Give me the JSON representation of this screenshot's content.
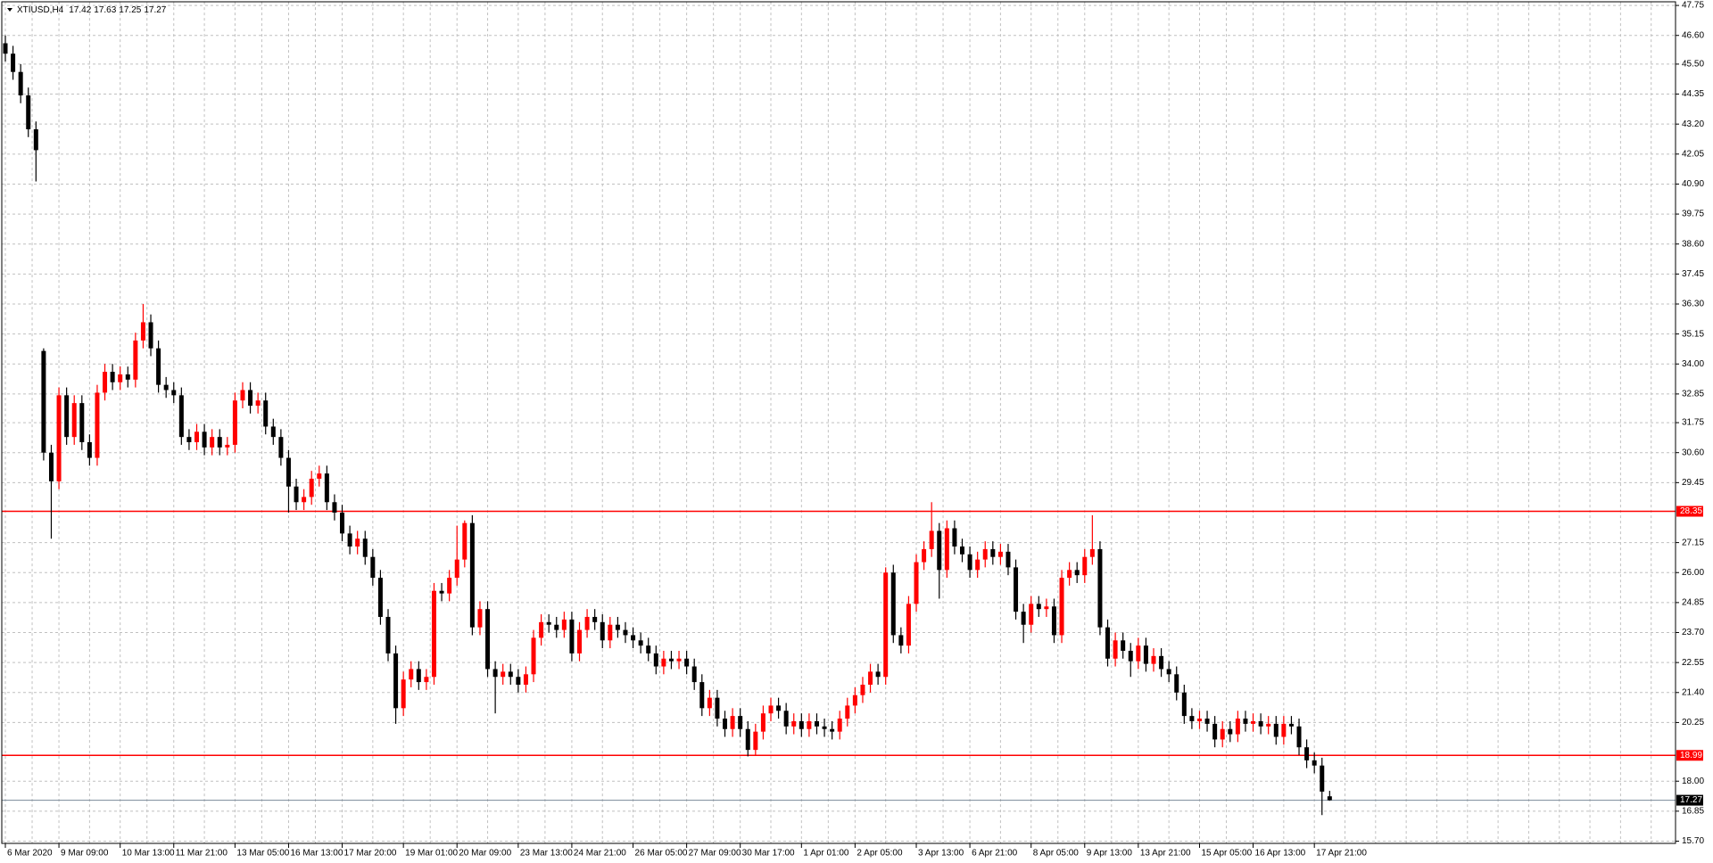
{
  "chart_data": {
    "type": "candlestick",
    "symbol": "XTIUSD,H4",
    "up_color": "#ff0000",
    "down_color": "#000000",
    "grid": true,
    "grid_color": "#c0c0c0",
    "ylim": [
      15.7,
      47.75
    ],
    "yticks": [
      47.75,
      {
        "value": 46.6,
        "label": "46.60"
      },
      {
        "value": 45.5,
        "label": "45.50"
      },
      44.35,
      {
        "value": 43.2,
        "label": "43.20"
      },
      42.05,
      {
        "value": 40.9,
        "label": "40.90"
      },
      39.75,
      {
        "value": 38.6,
        "label": "38.60"
      },
      37.45,
      {
        "value": 36.3,
        "label": "36.30"
      },
      35.15,
      {
        "value": 34.0,
        "label": "34.00"
      },
      32.85,
      31.75,
      {
        "value": 30.6,
        "label": "30.60"
      },
      29.45,
      27.15,
      {
        "value": 26.0,
        "label": "26.00"
      },
      24.85,
      {
        "value": 23.7,
        "label": "23.70"
      },
      22.55,
      {
        "value": 21.4,
        "label": "21.40"
      },
      20.25,
      {
        "value": 18.0,
        "label": "18.00"
      },
      16.85,
      {
        "value": 15.7,
        "label": "15.70"
      }
    ],
    "hlines": [
      {
        "value": 28.35,
        "color": "#ff0000"
      },
      {
        "value": 18.99,
        "color": "#ff0000"
      }
    ],
    "current_price": {
      "value": 17.27,
      "color": "#7a8a9a"
    },
    "categories": [
      "6 Mar 2020",
      null,
      null,
      null,
      null,
      null,
      null,
      "9 Mar 09:00",
      null,
      null,
      null,
      null,
      null,
      null,
      null,
      "10 Mar 13:00",
      null,
      null,
      null,
      null,
      null,
      null,
      "11 Mar 21:00",
      null,
      null,
      null,
      null,
      null,
      null,
      null,
      "13 Mar 05:00",
      null,
      null,
      null,
      null,
      null,
      null,
      "16 Mar 13:00",
      null,
      null,
      null,
      null,
      null,
      null,
      "17 Mar 20:00",
      null,
      null,
      null,
      null,
      null,
      null,
      null,
      "19 Mar 01:00",
      null,
      null,
      null,
      null,
      null,
      null,
      "20 Mar 09:00",
      null,
      null,
      null,
      null,
      null,
      null,
      null,
      "23 Mar 13:00",
      null,
      null,
      null,
      null,
      null,
      null,
      "24 Mar 21:00",
      null,
      null,
      null,
      null,
      null,
      null,
      null,
      "26 Mar 05:00",
      null,
      null,
      null,
      null,
      null,
      null,
      "27 Mar 09:00",
      null,
      null,
      null,
      null,
      null,
      null,
      "30 Mar 17:00",
      null,
      null,
      null,
      null,
      null,
      null,
      null,
      "1 Apr 01:00",
      null,
      null,
      null,
      null,
      null,
      null,
      "2 Apr 05:00",
      null,
      null,
      null,
      null,
      null,
      null,
      null,
      "3 Apr 13:00",
      null,
      null,
      null,
      null,
      null,
      null,
      "6 Apr 21:00",
      null,
      null,
      null,
      null,
      null,
      null,
      null,
      "8 Apr 05:00",
      null,
      null,
      null,
      null,
      null,
      null,
      "9 Apr 13:00",
      null,
      null,
      null,
      null,
      null,
      null,
      "13 Apr 21:00",
      null,
      null,
      null,
      null,
      null,
      null,
      null,
      "15 Apr 05:00",
      null,
      null,
      null,
      null,
      null,
      null,
      "16 Apr 13:00",
      null,
      null,
      null,
      null,
      null,
      null,
      null,
      "17 Apr 21:00",
      null,
      null
    ],
    "open": [
      46.3,
      45.9,
      45.2,
      44.3,
      43.0,
      34.5,
      30.6,
      29.5,
      32.8,
      31.2,
      32.5,
      31.0,
      30.4,
      32.9,
      33.7,
      33.3,
      33.6,
      33.4,
      34.9,
      35.6,
      34.6,
      33.2,
      33.0,
      32.8,
      31.2,
      31.0,
      31.4,
      30.8,
      31.2,
      30.8,
      30.9,
      32.6,
      33.0,
      32.4,
      32.6,
      31.6,
      31.2,
      30.4,
      29.3,
      28.7,
      28.9,
      29.6,
      29.8,
      28.7,
      28.3,
      27.5,
      27.0,
      27.3,
      26.6,
      25.8,
      24.3,
      22.9,
      20.8,
      21.9,
      22.3,
      21.8,
      22.0,
      25.3,
      25.2,
      25.8,
      26.5,
      27.9,
      23.9,
      24.6,
      22.3,
      22.0,
      22.2,
      22.0,
      21.7,
      22.1,
      23.5,
      24.1,
      24.0,
      23.8,
      24.2,
      22.9,
      23.8,
      24.3,
      24.1,
      23.4,
      24.0,
      23.8,
      23.6,
      23.4,
      23.2,
      22.9,
      22.4,
      22.7,
      22.6,
      22.7,
      22.4,
      21.8,
      20.8,
      21.2,
      20.4,
      20.0,
      20.5,
      20.0,
      19.2,
      19.9,
      20.6,
      20.9,
      20.7,
      20.1,
      20.3,
      20.0,
      20.3,
      20.1,
      20.0,
      19.9,
      20.4,
      20.9,
      21.3,
      21.7,
      22.2,
      22.0,
      26.0,
      23.6,
      23.2,
      24.8,
      26.4,
      26.9,
      27.6,
      26.1,
      27.7,
      27.0,
      26.7,
      26.1,
      26.5,
      26.9,
      26.6,
      26.8,
      26.2,
      24.5,
      24.0,
      24.8,
      24.6,
      24.7,
      23.6,
      25.8,
      26.1,
      25.9,
      26.6,
      26.9,
      23.9,
      22.7,
      23.4,
      23.0,
      22.6,
      23.2,
      22.5,
      22.8,
      22.3,
      22.1,
      21.4,
      20.5,
      20.3,
      20.4,
      20.2,
      19.6,
      20.0,
      19.8,
      20.4,
      20.2,
      20.3,
      20.1,
      20.2,
      19.7,
      20.2,
      20.1,
      19.3,
      18.8,
      18.6,
      17.42
    ],
    "high": [
      46.6,
      46.2,
      45.5,
      44.6,
      43.3,
      34.6,
      30.9,
      33.1,
      33.1,
      32.8,
      32.8,
      31.3,
      33.2,
      34.0,
      34.0,
      33.9,
      33.9,
      35.2,
      36.3,
      35.9,
      34.9,
      33.5,
      33.3,
      33.1,
      31.5,
      31.7,
      31.7,
      31.5,
      31.5,
      31.2,
      32.9,
      33.3,
      33.3,
      32.9,
      32.9,
      31.9,
      31.5,
      30.7,
      29.6,
      29.2,
      29.9,
      30.1,
      30.1,
      29.0,
      28.6,
      27.8,
      27.6,
      27.6,
      26.9,
      26.1,
      24.6,
      23.2,
      22.2,
      22.6,
      22.6,
      22.3,
      25.6,
      25.6,
      26.1,
      27.8,
      28.0,
      28.2,
      24.9,
      24.9,
      22.6,
      22.5,
      22.5,
      22.3,
      22.4,
      23.8,
      24.4,
      24.4,
      24.3,
      24.5,
      24.5,
      24.1,
      24.6,
      24.6,
      24.4,
      24.3,
      24.3,
      24.1,
      23.9,
      23.7,
      23.5,
      23.2,
      23.0,
      23.0,
      23.0,
      23.0,
      22.7,
      22.1,
      21.5,
      21.5,
      20.7,
      20.8,
      20.8,
      20.3,
      20.2,
      20.9,
      21.2,
      21.2,
      21.0,
      20.6,
      20.6,
      20.6,
      20.6,
      20.4,
      20.3,
      20.7,
      21.2,
      21.6,
      22.0,
      22.5,
      22.5,
      26.2,
      26.3,
      23.9,
      25.1,
      26.7,
      27.2,
      28.7,
      27.9,
      28.0,
      28.0,
      27.3,
      27.0,
      26.8,
      27.2,
      27.2,
      27.1,
      27.1,
      26.5,
      24.8,
      25.1,
      25.1,
      25.0,
      25.0,
      26.1,
      26.4,
      26.4,
      26.9,
      28.2,
      27.2,
      24.2,
      23.7,
      23.7,
      23.3,
      23.5,
      23.5,
      23.1,
      23.1,
      22.6,
      22.4,
      21.7,
      20.8,
      20.7,
      20.7,
      20.5,
      20.3,
      20.3,
      20.7,
      20.7,
      20.6,
      20.6,
      20.5,
      20.5,
      20.5,
      20.5,
      20.4,
      19.6,
      19.1,
      18.9,
      17.63
    ],
    "low": [
      45.6,
      44.9,
      44.0,
      42.7,
      41.0,
      30.3,
      27.3,
      29.2,
      30.9,
      30.9,
      30.7,
      30.1,
      30.1,
      32.6,
      33.0,
      33.0,
      33.1,
      33.1,
      34.6,
      34.3,
      32.9,
      32.7,
      32.5,
      30.9,
      30.7,
      30.7,
      30.5,
      30.5,
      30.5,
      30.5,
      30.6,
      32.3,
      32.1,
      32.1,
      31.3,
      30.9,
      30.1,
      28.3,
      28.4,
      28.4,
      28.6,
      29.3,
      28.4,
      28.0,
      27.2,
      26.7,
      26.7,
      26.3,
      25.5,
      24.0,
      22.6,
      20.2,
      20.5,
      21.6,
      21.5,
      21.5,
      21.7,
      24.9,
      24.9,
      25.5,
      26.2,
      23.6,
      23.6,
      22.0,
      20.6,
      21.7,
      21.7,
      21.4,
      21.4,
      21.8,
      23.2,
      23.7,
      23.5,
      23.5,
      22.6,
      22.6,
      23.5,
      23.8,
      23.1,
      23.1,
      23.5,
      23.3,
      23.1,
      22.9,
      22.6,
      22.1,
      22.1,
      22.3,
      22.3,
      22.1,
      21.5,
      20.5,
      20.5,
      20.1,
      19.7,
      19.7,
      19.7,
      18.95,
      19.0,
      19.6,
      20.3,
      20.4,
      19.8,
      19.8,
      19.7,
      19.7,
      19.8,
      19.7,
      19.6,
      19.6,
      20.1,
      20.6,
      21.0,
      21.4,
      21.7,
      21.7,
      23.3,
      22.9,
      22.9,
      24.5,
      26.1,
      26.6,
      25.0,
      25.8,
      26.7,
      26.4,
      25.8,
      25.8,
      26.2,
      26.3,
      26.3,
      25.9,
      24.2,
      23.3,
      23.7,
      24.3,
      24.3,
      23.3,
      23.3,
      25.5,
      25.6,
      25.6,
      26.3,
      23.6,
      22.4,
      22.4,
      22.7,
      22.0,
      22.3,
      22.2,
      22.2,
      22.0,
      21.8,
      21.1,
      20.2,
      20.0,
      20.0,
      19.9,
      19.3,
      19.3,
      19.5,
      19.5,
      19.9,
      19.9,
      19.8,
      19.8,
      19.4,
      19.4,
      19.8,
      19.0,
      18.5,
      18.3,
      16.7,
      17.25
    ],
    "close": [
      45.9,
      45.2,
      44.3,
      43.0,
      42.2,
      30.6,
      29.5,
      32.8,
      31.2,
      32.5,
      31.0,
      30.4,
      32.9,
      33.7,
      33.3,
      33.6,
      33.4,
      34.9,
      35.6,
      34.6,
      33.2,
      33.0,
      32.8,
      31.2,
      31.0,
      31.4,
      30.8,
      31.2,
      30.8,
      30.9,
      32.6,
      33.0,
      32.4,
      32.6,
      31.6,
      31.2,
      30.4,
      29.3,
      28.7,
      28.9,
      29.6,
      29.8,
      28.7,
      28.3,
      27.5,
      27.0,
      27.3,
      26.6,
      25.8,
      24.3,
      22.9,
      20.8,
      21.9,
      22.3,
      21.8,
      22.0,
      25.3,
      25.2,
      25.8,
      26.5,
      27.9,
      23.9,
      24.6,
      22.3,
      22.0,
      22.2,
      22.0,
      21.7,
      22.1,
      23.5,
      24.1,
      24.0,
      23.8,
      24.2,
      22.9,
      23.8,
      24.3,
      24.1,
      23.4,
      24.0,
      23.8,
      23.6,
      23.4,
      23.2,
      22.9,
      22.4,
      22.7,
      22.6,
      22.7,
      22.4,
      21.8,
      20.8,
      21.2,
      20.4,
      20.0,
      20.5,
      20.0,
      19.2,
      19.9,
      20.6,
      20.9,
      20.7,
      20.1,
      20.3,
      20.0,
      20.3,
      20.1,
      20.0,
      19.9,
      20.4,
      20.9,
      21.3,
      21.7,
      22.2,
      22.0,
      26.0,
      23.6,
      23.2,
      24.8,
      26.4,
      26.9,
      27.6,
      26.1,
      27.7,
      27.0,
      26.7,
      26.1,
      26.5,
      26.9,
      26.6,
      26.8,
      26.2,
      24.5,
      24.0,
      24.8,
      24.6,
      24.7,
      23.6,
      25.8,
      26.1,
      25.9,
      26.6,
      26.9,
      23.9,
      22.7,
      23.4,
      23.0,
      22.6,
      23.2,
      22.5,
      22.8,
      22.3,
      22.1,
      21.4,
      20.5,
      20.3,
      20.4,
      20.2,
      19.6,
      20.0,
      19.8,
      20.4,
      20.2,
      20.3,
      20.1,
      20.2,
      19.7,
      20.2,
      20.1,
      19.3,
      18.8,
      18.6,
      17.6,
      17.27
    ]
  }
}
